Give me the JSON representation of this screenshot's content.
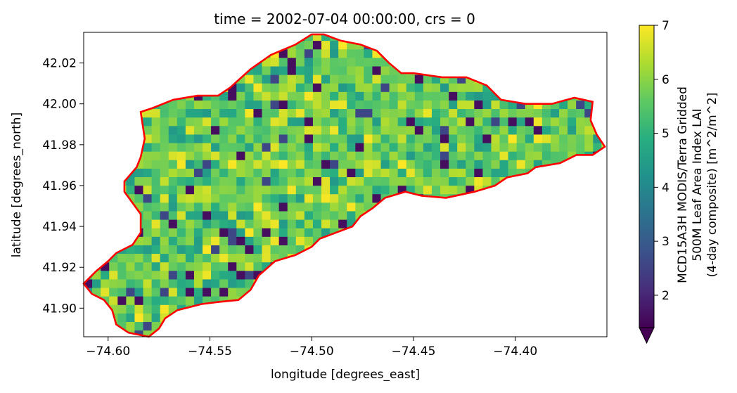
{
  "chart_data": {
    "type": "heatmap",
    "title": "time = 2002-07-04 00:00:00, crs = 0",
    "xlabel": "longitude [degrees_east]",
    "ylabel": "latitude [degrees_north]",
    "xlim": [
      -74.612,
      -74.355
    ],
    "ylim": [
      41.886,
      42.035
    ],
    "x_ticks": [
      {
        "value": -74.6,
        "label": "−74.60"
      },
      {
        "value": -74.55,
        "label": "−74.55"
      },
      {
        "value": -74.5,
        "label": "−74.50"
      },
      {
        "value": -74.45,
        "label": "−74.45"
      },
      {
        "value": -74.4,
        "label": "−74.40"
      }
    ],
    "y_ticks": [
      {
        "value": 41.9,
        "label": "41.90"
      },
      {
        "value": 41.92,
        "label": "41.92"
      },
      {
        "value": 41.94,
        "label": "41.94"
      },
      {
        "value": 41.96,
        "label": "41.96"
      },
      {
        "value": 41.98,
        "label": "41.98"
      },
      {
        "value": 42.0,
        "label": "42.00"
      },
      {
        "value": 42.02,
        "label": "42.02"
      }
    ],
    "colorbar": {
      "label_lines": [
        "MCD15A3H MODIS/Terra Gridded",
        "500M Leaf Area Index LAI",
        "(4-day composite) [m^2/m^2]"
      ],
      "range": [
        1.4,
        7.0
      ],
      "extend": "min",
      "ticks": [
        {
          "value": 2,
          "label": "2"
        },
        {
          "value": 3,
          "label": "3"
        },
        {
          "value": 4,
          "label": "4"
        },
        {
          "value": 5,
          "label": "5"
        },
        {
          "value": 6,
          "label": "6"
        },
        {
          "value": 7,
          "label": "7"
        }
      ],
      "colormap": "viridis"
    },
    "grid": {
      "lon0": -74.612,
      "dlon": 0.00417,
      "lat_top": 42.035,
      "dlat": 0.00417,
      "cols": 62,
      "rows": 36,
      "base_value": 5.6
    },
    "outline_color": "#ff0000",
    "boundary": [
      [
        -74.612,
        41.912
      ],
      [
        -74.606,
        41.918
      ],
      [
        -74.6,
        41.923
      ],
      [
        -74.596,
        41.927
      ],
      [
        -74.588,
        41.931
      ],
      [
        -74.584,
        41.937
      ],
      [
        -74.584,
        41.946
      ],
      [
        -74.592,
        41.957
      ],
      [
        -74.592,
        41.962
      ],
      [
        -74.586,
        41.969
      ],
      [
        -74.584,
        41.974
      ],
      [
        -74.582,
        41.983
      ],
      [
        -74.584,
        41.996
      ],
      [
        -74.578,
        41.998
      ],
      [
        -74.568,
        42.002
      ],
      [
        -74.556,
        42.004
      ],
      [
        -74.546,
        42.004
      ],
      [
        -74.54,
        42.008
      ],
      [
        -74.53,
        42.017
      ],
      [
        -74.52,
        42.024
      ],
      [
        -74.508,
        42.029
      ],
      [
        -74.5,
        42.034
      ],
      [
        -74.494,
        42.034
      ],
      [
        -74.486,
        42.031
      ],
      [
        -74.476,
        42.029
      ],
      [
        -74.468,
        42.026
      ],
      [
        -74.462,
        42.02
      ],
      [
        -74.456,
        42.015
      ],
      [
        -74.45,
        42.015
      ],
      [
        -74.436,
        42.013
      ],
      [
        -74.424,
        42.013
      ],
      [
        -74.414,
        42.009
      ],
      [
        -74.407,
        42.002
      ],
      [
        -74.395,
        42.0
      ],
      [
        -74.382,
        42.0
      ],
      [
        -74.371,
        42.003
      ],
      [
        -74.362,
        42.001
      ],
      [
        -74.363,
        41.992
      ],
      [
        -74.36,
        41.985
      ],
      [
        -74.356,
        41.979
      ],
      [
        -74.362,
        41.975
      ],
      [
        -74.37,
        41.975
      ],
      [
        -74.378,
        41.971
      ],
      [
        -74.39,
        41.969
      ],
      [
        -74.394,
        41.966
      ],
      [
        -74.404,
        41.964
      ],
      [
        -74.41,
        41.96
      ],
      [
        -74.42,
        41.957
      ],
      [
        -74.434,
        41.954
      ],
      [
        -74.446,
        41.955
      ],
      [
        -74.454,
        41.957
      ],
      [
        -74.464,
        41.954
      ],
      [
        -74.47,
        41.949
      ],
      [
        -74.476,
        41.945
      ],
      [
        -74.48,
        41.94
      ],
      [
        -74.488,
        41.937
      ],
      [
        -74.496,
        41.934
      ],
      [
        -74.5,
        41.93
      ],
      [
        -74.508,
        41.926
      ],
      [
        -74.518,
        41.923
      ],
      [
        -74.526,
        41.916
      ],
      [
        -74.53,
        41.909
      ],
      [
        -74.536,
        41.904
      ],
      [
        -74.546,
        41.903
      ],
      [
        -74.554,
        41.902
      ],
      [
        -74.566,
        41.899
      ],
      [
        -74.572,
        41.895
      ],
      [
        -74.575,
        41.89
      ],
      [
        -74.58,
        41.886
      ],
      [
        -74.59,
        41.888
      ],
      [
        -74.596,
        41.892
      ],
      [
        -74.598,
        41.899
      ],
      [
        -74.602,
        41.904
      ],
      [
        -74.608,
        41.907
      ],
      [
        -74.612,
        41.912
      ]
    ]
  }
}
